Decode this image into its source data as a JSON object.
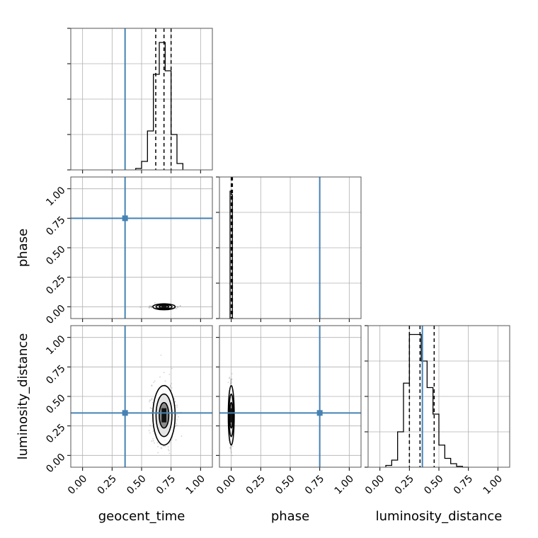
{
  "chart_data": {
    "type": "corner",
    "parameters": [
      "geocent_time",
      "phase",
      "luminosity_distance"
    ],
    "axis_labels": {
      "geocent_time": "geocent_time",
      "phase": "phase",
      "luminosity_distance": "luminosity_distance"
    },
    "range": [
      -0.1,
      1.1
    ],
    "ticks": [
      0.0,
      0.25,
      0.5,
      0.75,
      1.0
    ],
    "tick_labels": [
      "0.00",
      "0.25",
      "0.50",
      "0.75",
      "1.00"
    ],
    "grid": true,
    "colors": {
      "truth": "#4682b4",
      "hist": "#000000",
      "quantile": "#000000",
      "samples": "#808080",
      "grid": "#b0b0b0"
    },
    "truths": {
      "geocent_time": 0.36,
      "phase": 0.75,
      "luminosity_distance": 0.36
    },
    "quantiles": {
      "geocent_time": [
        0.62,
        0.69,
        0.75
      ],
      "phase": [
        0.0,
        0.005,
        0.01
      ],
      "luminosity_distance": [
        0.25,
        0.34,
        0.46
      ]
    },
    "histograms": {
      "geocent_time": {
        "bin_edges": [
          0.45,
          0.5,
          0.55,
          0.6,
          0.65,
          0.7,
          0.75,
          0.8,
          0.85
        ],
        "counts": [
          2,
          12,
          55,
          135,
          180,
          140,
          50,
          9
        ],
        "ymax": 200
      },
      "phase": {
        "bin_edges": [
          -0.02,
          -0.01,
          0.0,
          0.01,
          0.02
        ],
        "counts": [
          0,
          180,
          175,
          0
        ],
        "ymax": 200
      },
      "luminosity_distance": {
        "bin_edges": [
          0.05,
          0.1,
          0.15,
          0.2,
          0.25,
          0.3,
          0.35,
          0.4,
          0.45,
          0.5,
          0.55,
          0.6,
          0.65,
          0.7,
          0.75
        ],
        "counts": [
          2,
          8,
          40,
          95,
          150,
          150,
          120,
          90,
          60,
          25,
          10,
          4,
          1,
          0
        ],
        "ymax": 160
      }
    },
    "pairs": [
      {
        "x": "geocent_time",
        "y": "phase",
        "center": [
          0.69,
          0.0
        ],
        "spread": [
          0.045,
          0.006
        ]
      },
      {
        "x": "geocent_time",
        "y": "luminosity_distance",
        "center": [
          0.69,
          0.34
        ],
        "spread": [
          0.045,
          0.12
        ]
      },
      {
        "x": "phase",
        "y": "luminosity_distance",
        "center": [
          0.0,
          0.34
        ],
        "spread": [
          0.006,
          0.12
        ]
      }
    ]
  }
}
